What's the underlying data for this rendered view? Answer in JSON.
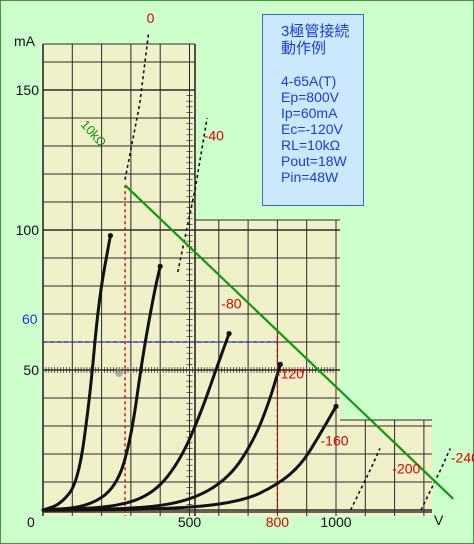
{
  "chart_data": {
    "type": "line",
    "title": "",
    "xlabel": "V",
    "ylabel": "mA",
    "xlim": [
      0,
      1000
    ],
    "ylim": [
      0,
      150
    ],
    "y_ticks": [
      {
        "value": 0,
        "label": "0"
      },
      {
        "value": 50,
        "label": "50"
      },
      {
        "value": 100,
        "label": "100"
      },
      {
        "value": 150,
        "label": "150"
      }
    ],
    "x_ticks": [
      {
        "value": 500,
        "label": "500"
      },
      {
        "value": 800,
        "label": "800",
        "color": "#dd0000"
      },
      {
        "value": 1000,
        "label": "1000"
      }
    ],
    "plate_curves": [
      {
        "name": "0",
        "points": [
          [
            0,
            0
          ],
          [
            60,
            2
          ],
          [
            120,
            10
          ],
          [
            160,
            40
          ],
          [
            190,
            75
          ],
          [
            230,
            98
          ]
        ]
      },
      {
        "name": "-40",
        "points": [
          [
            0,
            0
          ],
          [
            150,
            1
          ],
          [
            250,
            8
          ],
          [
            300,
            25
          ],
          [
            340,
            55
          ],
          [
            380,
            78
          ],
          [
            400,
            87
          ]
        ]
      },
      {
        "name": "-80",
        "points": [
          [
            0,
            0
          ],
          [
            250,
            1
          ],
          [
            380,
            6
          ],
          [
            470,
            18
          ],
          [
            540,
            35
          ],
          [
            590,
            50
          ],
          [
            635,
            63
          ]
        ]
      },
      {
        "name": "-120",
        "points": [
          [
            0,
            0
          ],
          [
            350,
            0.5
          ],
          [
            520,
            4
          ],
          [
            640,
            12
          ],
          [
            720,
            25
          ],
          [
            770,
            38
          ],
          [
            810,
            52
          ]
        ]
      },
      {
        "name": "-160",
        "points": [
          [
            0,
            0
          ],
          [
            450,
            0.3
          ],
          [
            680,
            3
          ],
          [
            800,
            9
          ],
          [
            880,
            16
          ],
          [
            940,
            26
          ],
          [
            1000,
            37
          ]
        ]
      }
    ],
    "dashed_curves": [
      {
        "name": "0",
        "points": [
          [
            280,
            118
          ],
          [
            330,
            145
          ],
          [
            360,
            170
          ]
        ]
      },
      {
        "name": "-40",
        "points": [
          [
            460,
            85
          ],
          [
            520,
            115
          ],
          [
            560,
            140
          ]
        ]
      },
      {
        "name": "-200",
        "points": [
          [
            1050,
            0
          ],
          [
            1120,
            15
          ],
          [
            1150,
            22
          ]
        ]
      },
      {
        "name": "-240",
        "points": [
          [
            1290,
            0
          ],
          [
            1360,
            15
          ],
          [
            1390,
            22
          ]
        ]
      }
    ],
    "load_line": {
      "label": "10kΩ",
      "points": [
        [
          280,
          116
        ],
        [
          1400,
          4
        ]
      ]
    },
    "operating_point": {
      "ep": 800,
      "ip": 60,
      "label": "60",
      "bias_label": "-120"
    },
    "marker_x": [
      280,
      800
    ],
    "curve_labels": [
      {
        "text": "0",
        "x": 367,
        "y": 174
      },
      {
        "text": "-40",
        "x": 583,
        "y": 132
      },
      {
        "text": "-80",
        "x": 643,
        "y": 72
      },
      {
        "text": "-120",
        "x": 843,
        "y": 47
      },
      {
        "text": "-160",
        "x": 995,
        "y": 23
      },
      {
        "text": "-200",
        "x": 1240,
        "y": 13
      },
      {
        "text": "-240",
        "x": 1440,
        "y": 17
      }
    ],
    "grid": true
  },
  "info": {
    "title_line1": "3極管接続",
    "title_line2": "動作例",
    "tube": "4-65A(T)",
    "ep": "Ep=800V",
    "ip": "Ip=60mA",
    "ec": "Ec=-120V",
    "rl": "RL=10kΩ",
    "pout": "Pout=18W",
    "pin": "Pin=48W"
  }
}
